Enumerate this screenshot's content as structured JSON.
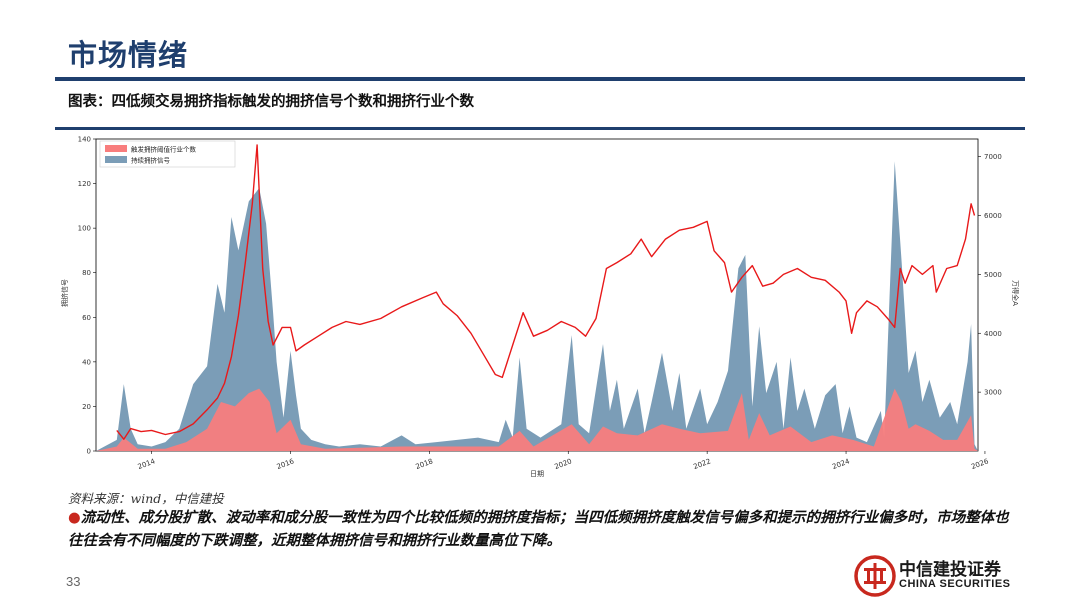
{
  "slide": {
    "title": "市场情绪",
    "figure_caption": "图表：四低频交易拥挤指标触发的拥挤信号个数和拥挤行业个数",
    "source": "资料来源：wind，中信建投",
    "note_bullet": "●",
    "note": "流动性、成分股扩散、波动率和成分股一致性为四个比较低频的拥挤度指标；当四低频拥挤度触发信号偏多和提示的拥挤行业偏多时，市场整体也往往会有不同幅度的下跌调整，近期整体拥挤信号和拥挤行业数量高位下降。",
    "page_number": "33",
    "logo_cn": "中信建投证券",
    "logo_en": "CHINA SECURITIES"
  },
  "colors": {
    "brand": "#1f3f6e",
    "accent": "#c8281e",
    "persist_area": "#7b9db7",
    "industry_area": "#f87d7d",
    "index_line": "#e8191a"
  },
  "chart_data": {
    "type": "area",
    "xlabel": "日期",
    "ylabel_left": "拥挤信号",
    "ylabel_right": "万得全A",
    "x_ticks": [
      "2014",
      "2016",
      "2018",
      "2020",
      "2022",
      "2024",
      "2026"
    ],
    "ylim_left": [
      0,
      140
    ],
    "yticks_left": [
      "0",
      "20",
      "40",
      "60",
      "80",
      "100",
      "120",
      "140"
    ],
    "ylim_right": [
      2000,
      7300
    ],
    "yticks_right": [
      "3000",
      "4000",
      "5000",
      "6000",
      "7000"
    ],
    "legend": [
      "触发拥挤阈值行业个数",
      "持续拥挤信号"
    ],
    "legend_placement": "top-left",
    "x_range": [
      2013.2,
      2025.9
    ],
    "series": [
      {
        "name": "持续拥挤信号",
        "kind": "area",
        "points": [
          [
            2013.2,
            0
          ],
          [
            2013.5,
            5
          ],
          [
            2013.6,
            30
          ],
          [
            2013.7,
            10
          ],
          [
            2013.8,
            3
          ],
          [
            2014.0,
            2
          ],
          [
            2014.2,
            4
          ],
          [
            2014.4,
            10
          ],
          [
            2014.6,
            30
          ],
          [
            2014.8,
            38
          ],
          [
            2014.95,
            75
          ],
          [
            2015.05,
            62
          ],
          [
            2015.15,
            105
          ],
          [
            2015.25,
            90
          ],
          [
            2015.4,
            112
          ],
          [
            2015.55,
            118
          ],
          [
            2015.65,
            102
          ],
          [
            2015.75,
            62
          ],
          [
            2015.8,
            40
          ],
          [
            2015.9,
            15
          ],
          [
            2016.0,
            45
          ],
          [
            2016.08,
            25
          ],
          [
            2016.15,
            10
          ],
          [
            2016.3,
            5
          ],
          [
            2016.5,
            3
          ],
          [
            2016.7,
            2
          ],
          [
            2017.0,
            3
          ],
          [
            2017.3,
            2
          ],
          [
            2017.6,
            7
          ],
          [
            2017.8,
            3
          ],
          [
            2018.1,
            4
          ],
          [
            2018.4,
            5
          ],
          [
            2018.7,
            6
          ],
          [
            2019.0,
            4
          ],
          [
            2019.1,
            14
          ],
          [
            2019.2,
            6
          ],
          [
            2019.3,
            42
          ],
          [
            2019.4,
            10
          ],
          [
            2019.6,
            6
          ],
          [
            2019.9,
            12
          ],
          [
            2020.05,
            52
          ],
          [
            2020.15,
            12
          ],
          [
            2020.3,
            8
          ],
          [
            2020.5,
            48
          ],
          [
            2020.6,
            18
          ],
          [
            2020.7,
            32
          ],
          [
            2020.8,
            10
          ],
          [
            2021.0,
            28
          ],
          [
            2021.1,
            8
          ],
          [
            2021.2,
            22
          ],
          [
            2021.35,
            44
          ],
          [
            2021.5,
            18
          ],
          [
            2021.6,
            35
          ],
          [
            2021.7,
            10
          ],
          [
            2021.9,
            28
          ],
          [
            2022.0,
            12
          ],
          [
            2022.15,
            22
          ],
          [
            2022.3,
            36
          ],
          [
            2022.45,
            82
          ],
          [
            2022.55,
            88
          ],
          [
            2022.65,
            20
          ],
          [
            2022.75,
            56
          ],
          [
            2022.85,
            26
          ],
          [
            2023.0,
            40
          ],
          [
            2023.1,
            10
          ],
          [
            2023.2,
            42
          ],
          [
            2023.3,
            18
          ],
          [
            2023.4,
            28
          ],
          [
            2023.55,
            10
          ],
          [
            2023.7,
            25
          ],
          [
            2023.85,
            30
          ],
          [
            2023.95,
            8
          ],
          [
            2024.05,
            20
          ],
          [
            2024.15,
            6
          ],
          [
            2024.3,
            4
          ],
          [
            2024.5,
            18
          ],
          [
            2024.55,
            6
          ],
          [
            2024.7,
            130
          ],
          [
            2024.8,
            85
          ],
          [
            2024.9,
            35
          ],
          [
            2025.0,
            45
          ],
          [
            2025.1,
            22
          ],
          [
            2025.2,
            32
          ],
          [
            2025.35,
            15
          ],
          [
            2025.5,
            22
          ],
          [
            2025.6,
            12
          ],
          [
            2025.75,
            40
          ],
          [
            2025.8,
            57
          ],
          [
            2025.85,
            3
          ],
          [
            2025.9,
            0
          ]
        ]
      },
      {
        "name": "触发拥挤阈值行业个数",
        "kind": "area",
        "points": [
          [
            2013.2,
            0
          ],
          [
            2013.5,
            2
          ],
          [
            2013.6,
            6
          ],
          [
            2013.8,
            1
          ],
          [
            2014.2,
            1
          ],
          [
            2014.5,
            4
          ],
          [
            2014.8,
            10
          ],
          [
            2015.0,
            22
          ],
          [
            2015.2,
            20
          ],
          [
            2015.4,
            26
          ],
          [
            2015.55,
            28
          ],
          [
            2015.7,
            22
          ],
          [
            2015.8,
            8
          ],
          [
            2016.0,
            14
          ],
          [
            2016.15,
            3
          ],
          [
            2016.5,
            1
          ],
          [
            2017.6,
            2
          ],
          [
            2018.4,
            2
          ],
          [
            2019.0,
            2
          ],
          [
            2019.3,
            9
          ],
          [
            2019.5,
            2
          ],
          [
            2020.05,
            12
          ],
          [
            2020.3,
            3
          ],
          [
            2020.5,
            11
          ],
          [
            2020.7,
            8
          ],
          [
            2021.0,
            7
          ],
          [
            2021.35,
            12
          ],
          [
            2021.6,
            10
          ],
          [
            2021.9,
            8
          ],
          [
            2022.3,
            9
          ],
          [
            2022.5,
            26
          ],
          [
            2022.6,
            5
          ],
          [
            2022.75,
            17
          ],
          [
            2022.9,
            7
          ],
          [
            2023.2,
            11
          ],
          [
            2023.5,
            4
          ],
          [
            2023.8,
            7
          ],
          [
            2024.1,
            5
          ],
          [
            2024.4,
            2
          ],
          [
            2024.7,
            28
          ],
          [
            2024.8,
            22
          ],
          [
            2024.9,
            10
          ],
          [
            2025.0,
            12
          ],
          [
            2025.2,
            9
          ],
          [
            2025.4,
            5
          ],
          [
            2025.6,
            5
          ],
          [
            2025.8,
            16
          ],
          [
            2025.85,
            1
          ],
          [
            2025.9,
            0
          ]
        ]
      },
      {
        "name": "万得全A",
        "kind": "line",
        "axis": "right",
        "points": [
          [
            2013.5,
            2350
          ],
          [
            2013.6,
            2200
          ],
          [
            2013.7,
            2380
          ],
          [
            2013.85,
            2330
          ],
          [
            2014.0,
            2350
          ],
          [
            2014.2,
            2280
          ],
          [
            2014.4,
            2330
          ],
          [
            2014.6,
            2460
          ],
          [
            2014.8,
            2700
          ],
          [
            2014.95,
            2900
          ],
          [
            2015.05,
            3150
          ],
          [
            2015.15,
            3600
          ],
          [
            2015.25,
            4300
          ],
          [
            2015.35,
            5200
          ],
          [
            2015.45,
            6200
          ],
          [
            2015.52,
            7200
          ],
          [
            2015.6,
            5100
          ],
          [
            2015.68,
            4200
          ],
          [
            2015.75,
            3800
          ],
          [
            2015.88,
            4100
          ],
          [
            2016.0,
            4100
          ],
          [
            2016.08,
            3700
          ],
          [
            2016.2,
            3800
          ],
          [
            2016.4,
            3950
          ],
          [
            2016.6,
            4100
          ],
          [
            2016.8,
            4200
          ],
          [
            2017.0,
            4150
          ],
          [
            2017.3,
            4250
          ],
          [
            2017.6,
            4450
          ],
          [
            2017.9,
            4600
          ],
          [
            2018.1,
            4700
          ],
          [
            2018.2,
            4500
          ],
          [
            2018.4,
            4300
          ],
          [
            2018.6,
            4000
          ],
          [
            2018.8,
            3600
          ],
          [
            2018.95,
            3300
          ],
          [
            2019.05,
            3250
          ],
          [
            2019.2,
            3800
          ],
          [
            2019.35,
            4350
          ],
          [
            2019.5,
            3950
          ],
          [
            2019.7,
            4050
          ],
          [
            2019.9,
            4200
          ],
          [
            2020.1,
            4100
          ],
          [
            2020.25,
            3950
          ],
          [
            2020.4,
            4250
          ],
          [
            2020.55,
            5100
          ],
          [
            2020.7,
            5200
          ],
          [
            2020.9,
            5350
          ],
          [
            2021.05,
            5600
          ],
          [
            2021.2,
            5300
          ],
          [
            2021.4,
            5600
          ],
          [
            2021.6,
            5750
          ],
          [
            2021.8,
            5800
          ],
          [
            2022.0,
            5900
          ],
          [
            2022.1,
            5400
          ],
          [
            2022.25,
            5200
          ],
          [
            2022.35,
            4700
          ],
          [
            2022.5,
            4950
          ],
          [
            2022.65,
            5150
          ],
          [
            2022.8,
            4800
          ],
          [
            2022.95,
            4850
          ],
          [
            2023.1,
            5000
          ],
          [
            2023.3,
            5100
          ],
          [
            2023.5,
            4950
          ],
          [
            2023.7,
            4900
          ],
          [
            2023.9,
            4700
          ],
          [
            2024.0,
            4550
          ],
          [
            2024.08,
            4000
          ],
          [
            2024.15,
            4350
          ],
          [
            2024.3,
            4550
          ],
          [
            2024.45,
            4450
          ],
          [
            2024.6,
            4250
          ],
          [
            2024.7,
            4100
          ],
          [
            2024.78,
            5100
          ],
          [
            2024.85,
            4850
          ],
          [
            2024.95,
            5150
          ],
          [
            2025.1,
            5000
          ],
          [
            2025.25,
            5150
          ],
          [
            2025.3,
            4700
          ],
          [
            2025.45,
            5100
          ],
          [
            2025.6,
            5150
          ],
          [
            2025.72,
            5600
          ],
          [
            2025.8,
            6200
          ],
          [
            2025.85,
            6000
          ]
        ]
      }
    ]
  }
}
